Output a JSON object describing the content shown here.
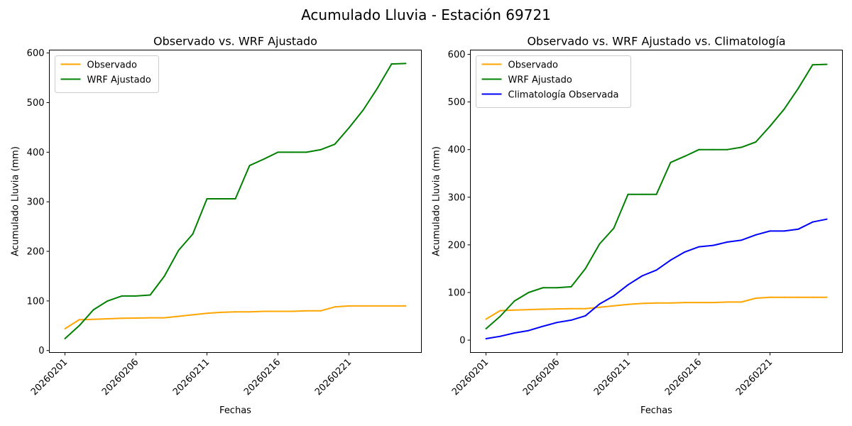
{
  "figure": {
    "title": "Acumulado Lluvia - Estación 69721"
  },
  "colors": {
    "observado": "#ffa500",
    "wrf": "#008000",
    "climatologia": "#0000ff"
  },
  "chart_data": [
    {
      "type": "line",
      "title": "Observado vs. WRF Ajustado",
      "xlabel": "Fechas",
      "ylabel": "Acumulado Lluvia (mm)",
      "x": [
        "20260201",
        "20260202",
        "20260203",
        "20260204",
        "20260205",
        "20260206",
        "20260207",
        "20260208",
        "20260209",
        "20260210",
        "20260211",
        "20260212",
        "20260213",
        "20260214",
        "20260215",
        "20260216",
        "20260217",
        "20260218",
        "20260219",
        "20260220",
        "20260221",
        "20260222",
        "20260223",
        "20260224",
        "20260225"
      ],
      "xticks": [
        "20260201",
        "20260206",
        "20260211",
        "20260216",
        "20260221"
      ],
      "yticks": [
        0,
        100,
        200,
        300,
        400,
        500,
        600
      ],
      "xlim": [
        -1.1,
        25.1
      ],
      "ylim": [
        -4,
        606
      ],
      "legend": "top-left",
      "series": [
        {
          "name": "Observado",
          "color_key": "observado",
          "values": [
            44,
            62,
            63,
            64,
            65,
            65.5,
            66,
            66,
            69,
            72,
            75,
            77,
            78,
            78,
            79,
            79,
            79,
            80,
            80,
            88,
            90,
            90,
            90,
            90,
            90
          ]
        },
        {
          "name": "WRF Ajustado",
          "color_key": "wrf",
          "values": [
            24,
            50,
            82,
            100,
            110,
            110,
            112,
            150,
            202,
            235,
            306,
            306,
            306,
            373,
            386,
            400,
            400,
            400,
            405,
            416,
            449,
            485,
            529,
            578,
            579
          ]
        }
      ]
    },
    {
      "type": "line",
      "title": "Observado vs. WRF Ajustado vs. Climatología",
      "xlabel": "Fechas",
      "ylabel": "Acumulado Lluvia (mm)",
      "x": [
        "20260201",
        "20260202",
        "20260203",
        "20260204",
        "20260205",
        "20260206",
        "20260207",
        "20260208",
        "20260209",
        "20260210",
        "20260211",
        "20260212",
        "20260213",
        "20260214",
        "20260215",
        "20260216",
        "20260217",
        "20260218",
        "20260219",
        "20260220",
        "20260221",
        "20260222",
        "20260223",
        "20260224",
        "20260225"
      ],
      "xticks": [
        "20260201",
        "20260206",
        "20260211",
        "20260216",
        "20260221"
      ],
      "yticks": [
        0,
        100,
        200,
        300,
        400,
        500,
        600
      ],
      "xlim": [
        -1.1,
        25.1
      ],
      "ylim": [
        -26,
        609
      ],
      "legend": "top-left",
      "series": [
        {
          "name": "Observado",
          "color_key": "observado",
          "values": [
            44,
            62,
            63,
            64,
            65,
            65.5,
            66,
            66,
            69,
            72,
            75,
            77,
            78,
            78,
            79,
            79,
            79,
            80,
            80,
            88,
            90,
            90,
            90,
            90,
            90
          ]
        },
        {
          "name": "WRF Ajustado",
          "color_key": "wrf",
          "values": [
            24,
            50,
            82,
            100,
            110,
            110,
            112,
            150,
            202,
            235,
            306,
            306,
            306,
            373,
            386,
            400,
            400,
            400,
            405,
            416,
            449,
            485,
            529,
            578,
            579
          ]
        },
        {
          "name": "Climatología Observada",
          "color_key": "climatologia",
          "values": [
            3,
            8,
            15,
            20,
            29,
            37,
            42,
            51,
            76,
            93,
            116,
            135,
            147,
            168,
            185,
            196,
            199,
            206,
            210,
            221,
            229,
            229,
            233,
            248,
            254
          ]
        }
      ]
    }
  ]
}
